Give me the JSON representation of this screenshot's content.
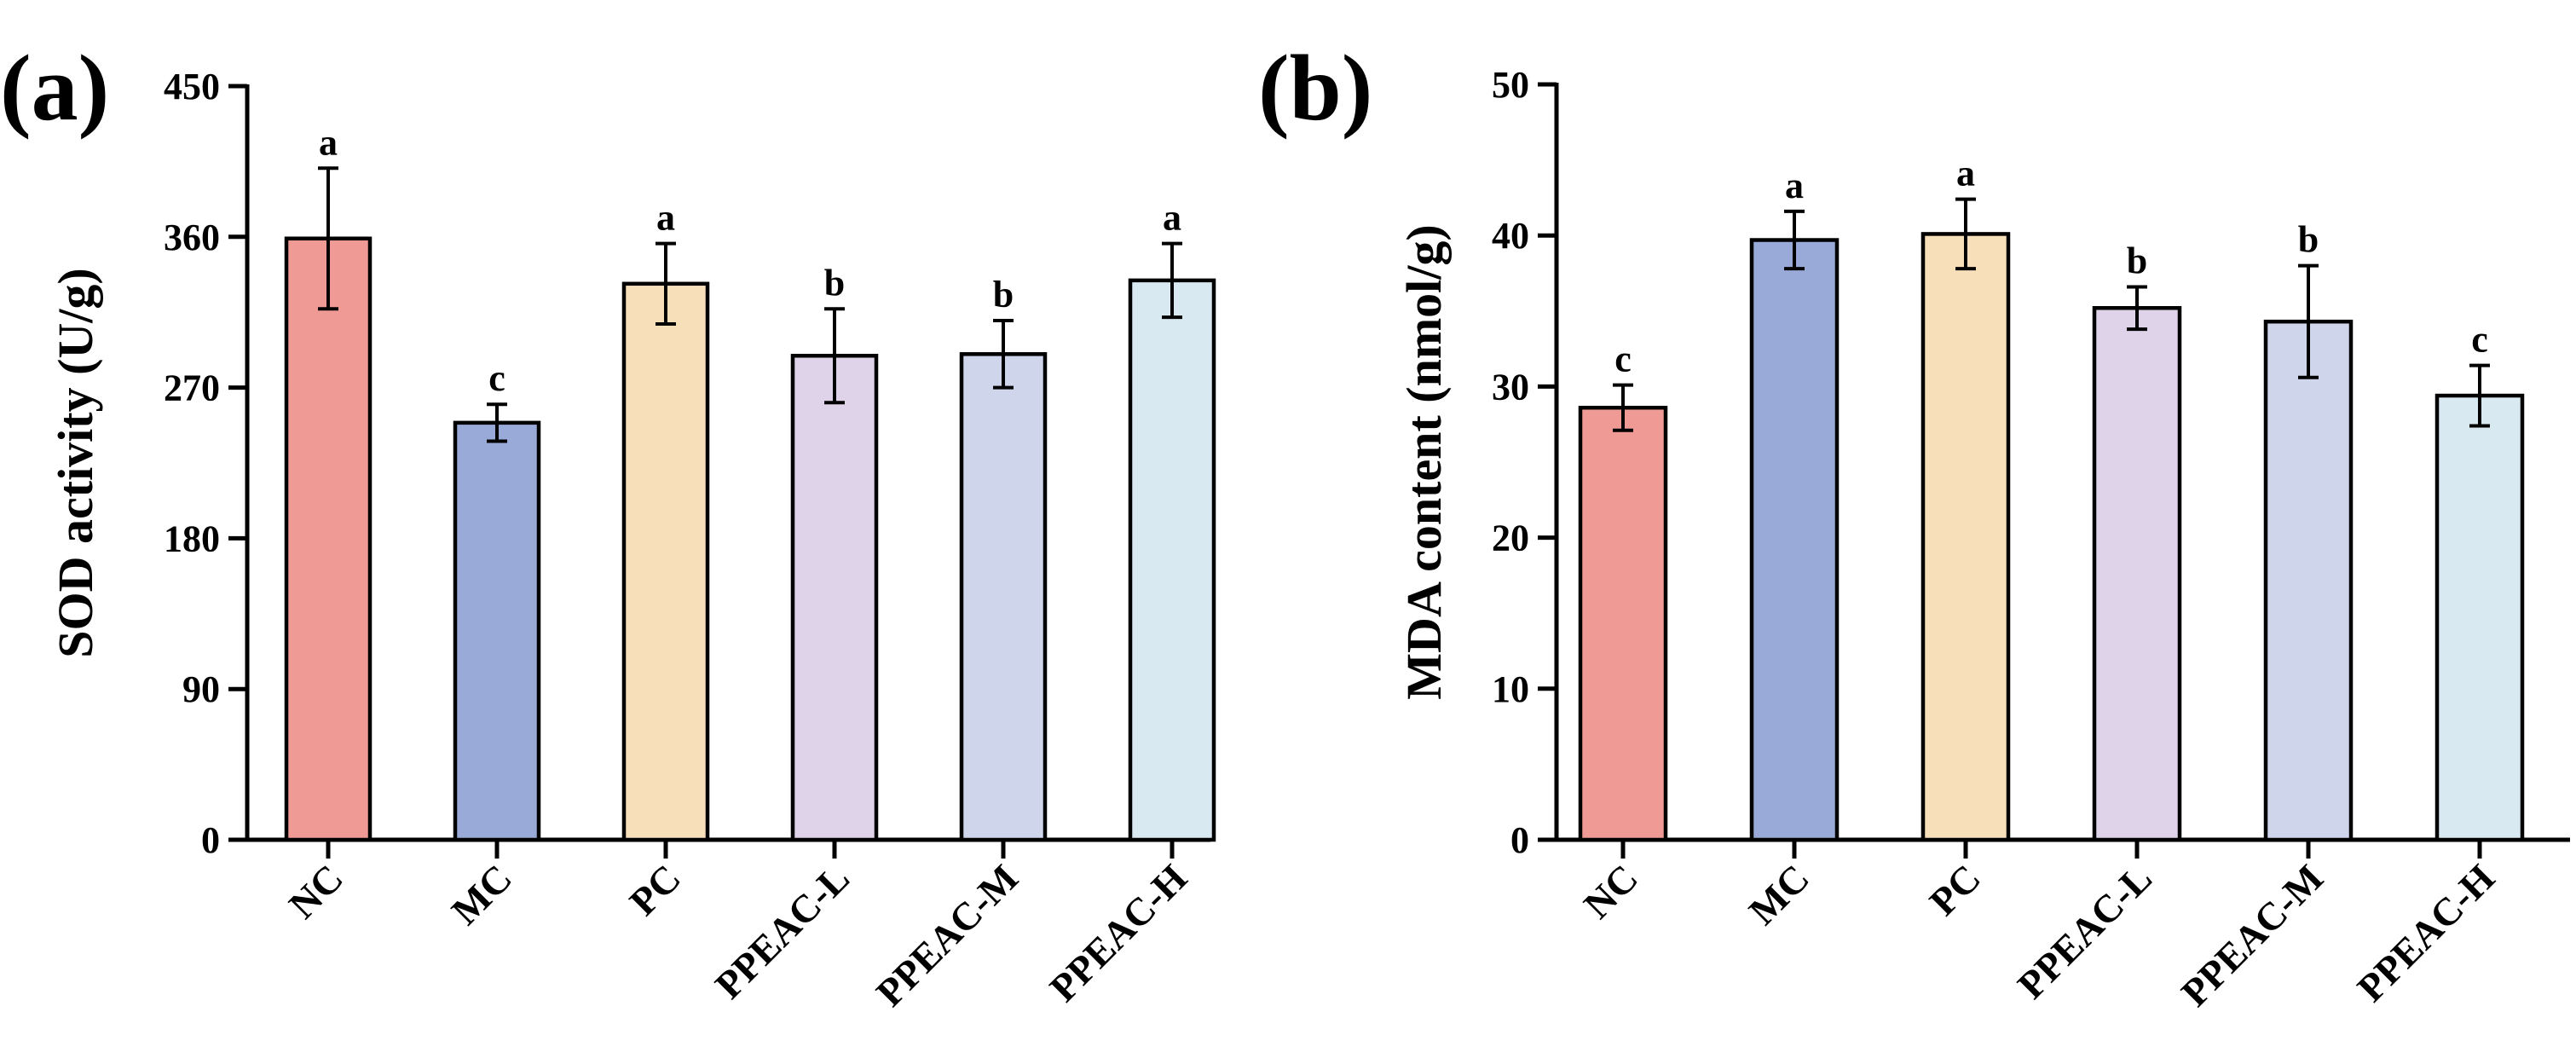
{
  "chart_data": [
    {
      "type": "bar",
      "panel_label": "(a)",
      "title": "",
      "xlabel": "",
      "ylabel": "SOD activity (U/g)",
      "ylim": [
        0,
        450
      ],
      "yticks": [
        0,
        90,
        180,
        270,
        360,
        450
      ],
      "categories": [
        "NC",
        "MC",
        "PC",
        "PPEAC-L",
        "PPEAC-M",
        "PPEAC-H"
      ],
      "values": [
        359,
        249,
        332,
        289,
        290,
        334
      ],
      "errors": [
        42,
        11,
        24,
        28,
        20,
        22
      ],
      "significance": [
        "a",
        "c",
        "a",
        "b",
        "b",
        "a"
      ],
      "colors": [
        "#ef9a94",
        "#9aaad8",
        "#f7dfba",
        "#ded3e8",
        "#cfd6ec",
        "#d9e9f1"
      ]
    },
    {
      "type": "bar",
      "panel_label": "(b)",
      "title": "",
      "xlabel": "",
      "ylabel": "MDA content (nmol/g)",
      "ylim": [
        0,
        50
      ],
      "yticks": [
        0,
        10,
        20,
        30,
        40,
        50
      ],
      "categories": [
        "NC",
        "MC",
        "PC",
        "PPEAC-L",
        "PPEAC-M",
        "PPEAC-H"
      ],
      "values": [
        28.6,
        39.7,
        40.1,
        35.2,
        34.3,
        29.4
      ],
      "errors": [
        1.5,
        1.9,
        2.3,
        1.4,
        3.7,
        2.0
      ],
      "significance": [
        "c",
        "a",
        "a",
        "b",
        "b",
        "c"
      ],
      "colors": [
        "#ef9a94",
        "#9aaad8",
        "#f7dfba",
        "#ded3e8",
        "#cfd6ec",
        "#d9e9f1"
      ]
    }
  ]
}
